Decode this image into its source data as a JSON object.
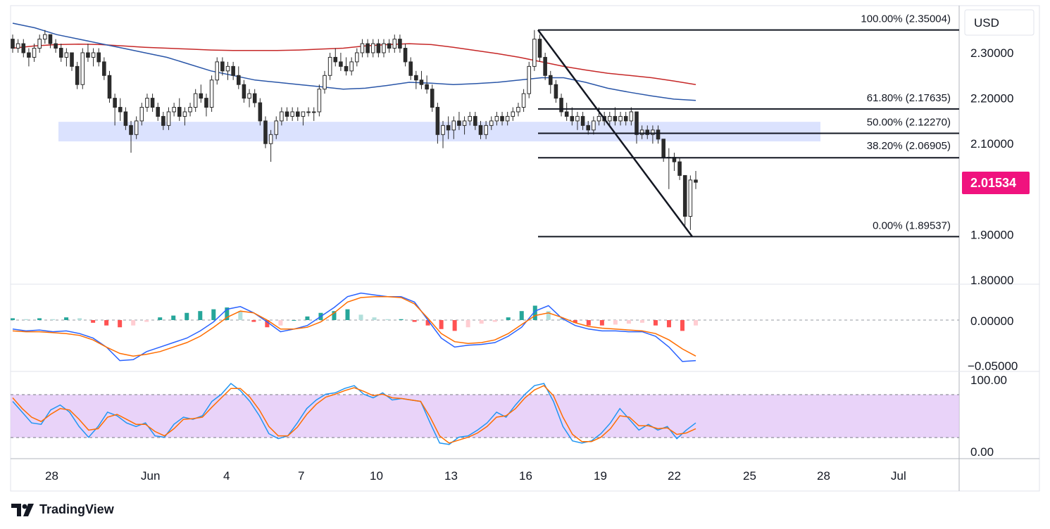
{
  "chart_data": {
    "type": "candlestick",
    "currency": "USD",
    "last_price": "2.01534",
    "price_axis": {
      "ticks": [
        "2.30000",
        "2.20000",
        "2.10000",
        "1.90000",
        "1.80000"
      ],
      "range": [
        1.8,
        2.36
      ]
    },
    "x_axis": {
      "tick_labels": [
        "28",
        "Jun",
        "4",
        "7",
        "10",
        "13",
        "16",
        "19",
        "22",
        "25",
        "28",
        "Jul"
      ]
    },
    "fibonacci": [
      {
        "label": "100.00% (2.35004)",
        "value": 2.35004
      },
      {
        "label": "61.80% (2.17635)",
        "value": 2.17635
      },
      {
        "label": "50.00% (2.12270)",
        "value": 2.1227
      },
      {
        "label": "38.20% (2.06905)",
        "value": 2.06905
      },
      {
        "label": "0.00% (1.89537)",
        "value": 1.89537
      }
    ],
    "support_zone": [
      2.105,
      2.148
    ],
    "trendline": {
      "from": 2.35004,
      "to": 1.89537
    },
    "candles_ohlc": [
      [
        2.33,
        2.34,
        2.3,
        2.31
      ],
      [
        2.31,
        2.33,
        2.3,
        2.32
      ],
      [
        2.32,
        2.33,
        2.29,
        2.3
      ],
      [
        2.3,
        2.31,
        2.27,
        2.29
      ],
      [
        2.29,
        2.32,
        2.28,
        2.31
      ],
      [
        2.31,
        2.34,
        2.3,
        2.33
      ],
      [
        2.33,
        2.35,
        2.32,
        2.34
      ],
      [
        2.34,
        2.34,
        2.31,
        2.32
      ],
      [
        2.32,
        2.33,
        2.3,
        2.31
      ],
      [
        2.31,
        2.32,
        2.28,
        2.29
      ],
      [
        2.29,
        2.31,
        2.27,
        2.3
      ],
      [
        2.3,
        2.3,
        2.26,
        2.27
      ],
      [
        2.27,
        2.28,
        2.22,
        2.23
      ],
      [
        2.23,
        2.31,
        2.22,
        2.3
      ],
      [
        2.3,
        2.32,
        2.28,
        2.29
      ],
      [
        2.29,
        2.31,
        2.27,
        2.3
      ],
      [
        2.3,
        2.31,
        2.27,
        2.28
      ],
      [
        2.28,
        2.29,
        2.24,
        2.25
      ],
      [
        2.25,
        2.26,
        2.19,
        2.2
      ],
      [
        2.2,
        2.21,
        2.14,
        2.18
      ],
      [
        2.18,
        2.2,
        2.15,
        2.17
      ],
      [
        2.17,
        2.18,
        2.13,
        2.14
      ],
      [
        2.14,
        2.15,
        2.08,
        2.12
      ],
      [
        2.12,
        2.16,
        2.11,
        2.15
      ],
      [
        2.15,
        2.19,
        2.14,
        2.18
      ],
      [
        2.18,
        2.21,
        2.17,
        2.2
      ],
      [
        2.2,
        2.21,
        2.17,
        2.18
      ],
      [
        2.18,
        2.19,
        2.15,
        2.16
      ],
      [
        2.16,
        2.17,
        2.13,
        2.14
      ],
      [
        2.14,
        2.18,
        2.13,
        2.17
      ],
      [
        2.17,
        2.19,
        2.16,
        2.18
      ],
      [
        2.18,
        2.2,
        2.15,
        2.16
      ],
      [
        2.16,
        2.18,
        2.14,
        2.17
      ],
      [
        2.17,
        2.19,
        2.16,
        2.18
      ],
      [
        2.18,
        2.22,
        2.17,
        2.21
      ],
      [
        2.21,
        2.23,
        2.19,
        2.2
      ],
      [
        2.2,
        2.21,
        2.16,
        2.18
      ],
      [
        2.18,
        2.25,
        2.17,
        2.24
      ],
      [
        2.24,
        2.29,
        2.23,
        2.28
      ],
      [
        2.28,
        2.29,
        2.25,
        2.26
      ],
      [
        2.26,
        2.28,
        2.24,
        2.27
      ],
      [
        2.27,
        2.28,
        2.24,
        2.25
      ],
      [
        2.25,
        2.27,
        2.22,
        2.23
      ],
      [
        2.23,
        2.24,
        2.19,
        2.2
      ],
      [
        2.2,
        2.22,
        2.18,
        2.21
      ],
      [
        2.21,
        2.22,
        2.18,
        2.19
      ],
      [
        2.19,
        2.2,
        2.14,
        2.15
      ],
      [
        2.15,
        2.16,
        2.09,
        2.1
      ],
      [
        2.1,
        2.13,
        2.06,
        2.12
      ],
      [
        2.12,
        2.16,
        2.11,
        2.15
      ],
      [
        2.15,
        2.18,
        2.14,
        2.17
      ],
      [
        2.17,
        2.18,
        2.15,
        2.16
      ],
      [
        2.16,
        2.18,
        2.15,
        2.17
      ],
      [
        2.17,
        2.18,
        2.15,
        2.16
      ],
      [
        2.16,
        2.17,
        2.14,
        2.17
      ],
      [
        2.17,
        2.18,
        2.16,
        2.17
      ],
      [
        2.17,
        2.18,
        2.15,
        2.17
      ],
      [
        2.17,
        2.23,
        2.16,
        2.22
      ],
      [
        2.22,
        2.26,
        2.21,
        2.25
      ],
      [
        2.25,
        2.3,
        2.24,
        2.29
      ],
      [
        2.29,
        2.31,
        2.27,
        2.28
      ],
      [
        2.28,
        2.3,
        2.26,
        2.27
      ],
      [
        2.27,
        2.29,
        2.25,
        2.26
      ],
      [
        2.26,
        2.29,
        2.25,
        2.28
      ],
      [
        2.28,
        2.31,
        2.27,
        2.3
      ],
      [
        2.3,
        2.33,
        2.29,
        2.32
      ],
      [
        2.32,
        2.33,
        2.29,
        2.3
      ],
      [
        2.3,
        2.33,
        2.29,
        2.32
      ],
      [
        2.32,
        2.33,
        2.29,
        2.3
      ],
      [
        2.3,
        2.33,
        2.29,
        2.32
      ],
      [
        2.32,
        2.33,
        2.3,
        2.31
      ],
      [
        2.31,
        2.34,
        2.3,
        2.33
      ],
      [
        2.33,
        2.34,
        2.3,
        2.31
      ],
      [
        2.31,
        2.32,
        2.27,
        2.28
      ],
      [
        2.28,
        2.29,
        2.24,
        2.25
      ],
      [
        2.25,
        2.26,
        2.22,
        2.24
      ],
      [
        2.24,
        2.26,
        2.22,
        2.23
      ],
      [
        2.23,
        2.25,
        2.21,
        2.22
      ],
      [
        2.22,
        2.23,
        2.17,
        2.18
      ],
      [
        2.18,
        2.19,
        2.1,
        2.12
      ],
      [
        2.12,
        2.15,
        2.09,
        2.14
      ],
      [
        2.14,
        2.16,
        2.11,
        2.13
      ],
      [
        2.13,
        2.16,
        2.11,
        2.15
      ],
      [
        2.15,
        2.17,
        2.13,
        2.14
      ],
      [
        2.14,
        2.16,
        2.12,
        2.15
      ],
      [
        2.15,
        2.17,
        2.14,
        2.16
      ],
      [
        2.16,
        2.17,
        2.13,
        2.14
      ],
      [
        2.14,
        2.15,
        2.11,
        2.12
      ],
      [
        2.12,
        2.15,
        2.11,
        2.14
      ],
      [
        2.14,
        2.16,
        2.13,
        2.15
      ],
      [
        2.15,
        2.17,
        2.14,
        2.16
      ],
      [
        2.16,
        2.17,
        2.14,
        2.15
      ],
      [
        2.15,
        2.17,
        2.14,
        2.16
      ],
      [
        2.16,
        2.18,
        2.15,
        2.17
      ],
      [
        2.17,
        2.19,
        2.16,
        2.18
      ],
      [
        2.18,
        2.22,
        2.17,
        2.21
      ],
      [
        2.21,
        2.28,
        2.2,
        2.27
      ],
      [
        2.27,
        2.35,
        2.26,
        2.33
      ],
      [
        2.33,
        2.34,
        2.28,
        2.29
      ],
      [
        2.29,
        2.3,
        2.24,
        2.25
      ],
      [
        2.25,
        2.26,
        2.21,
        2.23
      ],
      [
        2.23,
        2.24,
        2.19,
        2.2
      ],
      [
        2.2,
        2.21,
        2.16,
        2.17
      ],
      [
        2.17,
        2.19,
        2.15,
        2.16
      ],
      [
        2.16,
        2.18,
        2.14,
        2.15
      ],
      [
        2.15,
        2.17,
        2.13,
        2.16
      ],
      [
        2.16,
        2.17,
        2.13,
        2.14
      ],
      [
        2.14,
        2.15,
        2.12,
        2.13
      ],
      [
        2.13,
        2.16,
        2.12,
        2.15
      ],
      [
        2.15,
        2.18,
        2.14,
        2.16
      ],
      [
        2.16,
        2.17,
        2.14,
        2.15
      ],
      [
        2.15,
        2.17,
        2.14,
        2.16
      ],
      [
        2.16,
        2.18,
        2.14,
        2.15
      ],
      [
        2.15,
        2.17,
        2.14,
        2.16
      ],
      [
        2.16,
        2.17,
        2.14,
        2.15
      ],
      [
        2.15,
        2.18,
        2.14,
        2.17
      ],
      [
        2.17,
        2.17,
        2.1,
        2.12
      ],
      [
        2.12,
        2.14,
        2.11,
        2.13
      ],
      [
        2.13,
        2.14,
        2.11,
        2.12
      ],
      [
        2.12,
        2.14,
        2.1,
        2.13
      ],
      [
        2.13,
        2.14,
        2.1,
        2.11
      ],
      [
        2.11,
        2.11,
        2.06,
        2.07
      ],
      [
        2.07,
        2.09,
        2.0,
        2.07
      ],
      [
        2.07,
        2.08,
        2.04,
        2.06
      ],
      [
        2.06,
        2.07,
        2.02,
        2.03
      ],
      [
        2.03,
        2.03,
        1.92,
        1.94
      ],
      [
        1.94,
        2.03,
        1.91,
        2.02
      ],
      [
        2.02,
        2.04,
        2.0,
        2.015
      ]
    ],
    "ma_blue": [
      2.365,
      2.355,
      2.34,
      2.33,
      2.32,
      2.31,
      2.3,
      2.29,
      2.275,
      2.26,
      2.25,
      2.24,
      2.235,
      2.23,
      2.225,
      2.22,
      2.222,
      2.228,
      2.235,
      2.233,
      2.23,
      2.232,
      2.235,
      2.24,
      2.245,
      2.245,
      2.235,
      2.222,
      2.213,
      2.205,
      2.198,
      2.195
    ],
    "ma_red": [
      2.31,
      2.315,
      2.318,
      2.319,
      2.318,
      2.315,
      2.312,
      2.31,
      2.308,
      2.306,
      2.305,
      2.305,
      2.305,
      2.306,
      2.308,
      2.31,
      2.315,
      2.318,
      2.32,
      2.318,
      2.312,
      2.305,
      2.298,
      2.29,
      2.28,
      2.27,
      2.262,
      2.255,
      2.25,
      2.245,
      2.238,
      2.23
    ],
    "macd": {
      "ticks": [
        "0.00000",
        "−0.05000"
      ],
      "range": [
        -0.058,
        0.035
      ],
      "macd_line": [
        -0.01,
        -0.012,
        -0.011,
        -0.013,
        -0.012,
        -0.015,
        -0.02,
        -0.03,
        -0.045,
        -0.044,
        -0.035,
        -0.03,
        -0.025,
        -0.02,
        -0.012,
        -0.002,
        0.012,
        0.015,
        0.008,
        -0.002,
        -0.013,
        -0.01,
        -0.006,
        0.004,
        0.014,
        0.026,
        0.03,
        0.028,
        0.026,
        0.026,
        0.02,
        0.0,
        -0.02,
        -0.03,
        -0.028,
        -0.027,
        -0.025,
        -0.018,
        -0.008,
        0.01,
        0.016,
        0.002,
        -0.006,
        -0.01,
        -0.012,
        -0.012,
        -0.013,
        -0.013,
        -0.018,
        -0.03,
        -0.046,
        -0.045
      ],
      "signal_line": [
        -0.012,
        -0.013,
        -0.013,
        -0.014,
        -0.015,
        -0.017,
        -0.022,
        -0.03,
        -0.037,
        -0.04,
        -0.038,
        -0.035,
        -0.03,
        -0.025,
        -0.018,
        -0.008,
        0.003,
        0.01,
        0.008,
        0.0,
        -0.01,
        -0.01,
        -0.008,
        -0.002,
        0.008,
        0.02,
        0.025,
        0.026,
        0.026,
        0.025,
        0.018,
        0.002,
        -0.015,
        -0.024,
        -0.026,
        -0.025,
        -0.022,
        -0.015,
        -0.005,
        0.005,
        0.008,
        0.003,
        -0.003,
        -0.007,
        -0.009,
        -0.01,
        -0.011,
        -0.012,
        -0.015,
        -0.022,
        -0.032,
        -0.04
      ],
      "histogram": [
        0.002,
        0.001,
        0.002,
        0.001,
        0.003,
        0.002,
        -0.003,
        -0.006,
        -0.008,
        -0.006,
        -0.002,
        0.003,
        0.005,
        0.008,
        0.01,
        0.012,
        0.014,
        0.01,
        -0.002,
        -0.008,
        -0.006,
        0.0,
        0.004,
        0.008,
        0.01,
        0.012,
        0.006,
        0.003,
        0.001,
        0.001,
        -0.002,
        -0.006,
        -0.01,
        -0.012,
        -0.008,
        -0.004,
        -0.002,
        0.003,
        0.01,
        0.016,
        0.01,
        0.002,
        -0.003,
        -0.006,
        -0.006,
        -0.005,
        -0.004,
        -0.003,
        -0.006,
        -0.008,
        -0.012,
        -0.006
      ]
    },
    "stoch": {
      "ticks": [
        "100.00",
        "0.00"
      ],
      "range": [
        0,
        100
      ],
      "upper_band": 80,
      "lower_band": 20,
      "k_line": [
        70,
        55,
        40,
        38,
        58,
        65,
        55,
        35,
        20,
        35,
        55,
        50,
        40,
        35,
        40,
        22,
        20,
        38,
        48,
        45,
        50,
        70,
        80,
        95,
        85,
        70,
        50,
        25,
        18,
        22,
        40,
        60,
        72,
        80,
        82,
        88,
        92,
        80,
        75,
        82,
        72,
        74,
        72,
        70,
        40,
        12,
        10,
        20,
        22,
        30,
        40,
        55,
        48,
        65,
        80,
        92,
        95,
        70,
        35,
        15,
        12,
        15,
        25,
        40,
        60,
        45,
        30,
        38,
        30,
        35,
        18,
        30,
        40
      ],
      "d_line": [
        75,
        60,
        48,
        42,
        52,
        60,
        58,
        45,
        30,
        32,
        48,
        52,
        45,
        38,
        38,
        28,
        22,
        32,
        45,
        46,
        48,
        62,
        75,
        88,
        88,
        76,
        58,
        35,
        22,
        22,
        34,
        52,
        66,
        76,
        80,
        85,
        89,
        84,
        78,
        80,
        75,
        74,
        72,
        70,
        48,
        22,
        12,
        16,
        20,
        26,
        35,
        48,
        50,
        60,
        75,
        86,
        92,
        78,
        48,
        24,
        14,
        14,
        20,
        32,
        50,
        48,
        36,
        36,
        32,
        33,
        24,
        26,
        32
      ]
    }
  },
  "branding": {
    "logo_text": "TradingView",
    "logo_icon": "tradingview-logo-icon"
  },
  "colors": {
    "bull": "#26a69a",
    "bear": "#ef5350",
    "ma_blue": "#2a56a8",
    "ma_red": "#c62828",
    "macd": "#2962ff",
    "signal": "#ff6d00",
    "stoch_k": "#2196f3",
    "stoch_d": "#ff6d00",
    "price_tag": "#f0127e",
    "zone": "#c7d2fe",
    "band": "#e1c4f7"
  }
}
